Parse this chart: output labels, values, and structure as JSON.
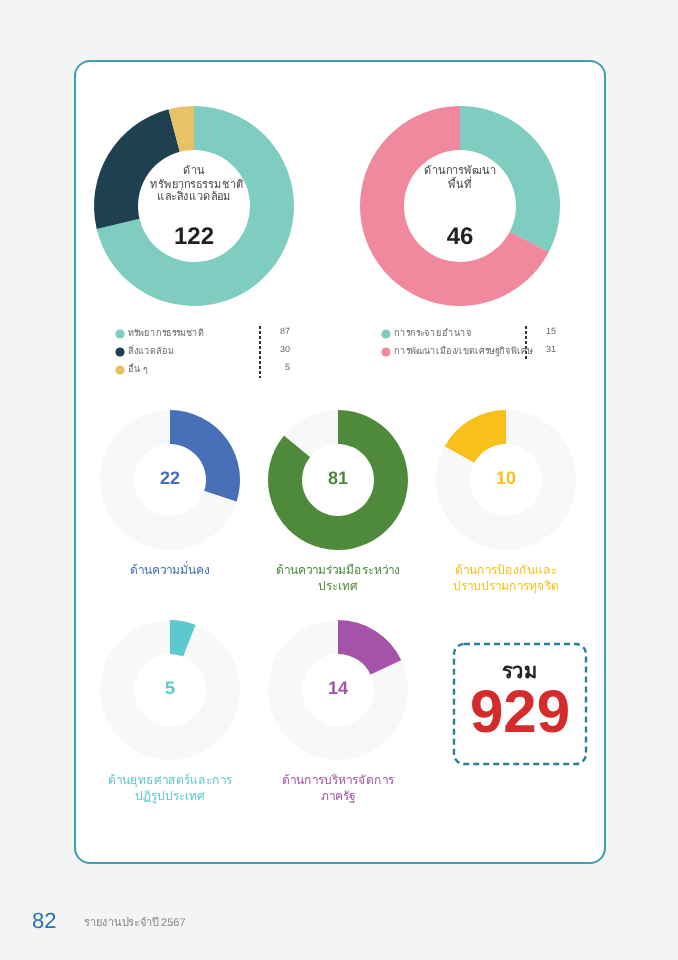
{
  "chart_data": [
    {
      "type": "donut",
      "title": "ด้านทรัพยากรธรรมชาติและสิ่งแวดล้อม",
      "annotations": [
        "122"
      ],
      "categories": [
        "ทรัพยากรธรรมชาติ",
        "สิ่งแวดล้อม",
        "อื่น ๆ"
      ],
      "values": [
        87,
        30,
        5
      ],
      "colors": [
        "#7ecdc0",
        "#1f4050",
        "#e8c267"
      ],
      "data_labels": true,
      "legend": "bottom"
    },
    {
      "type": "donut",
      "title": "ด้านการพัฒนาพื้นที่",
      "annotations": [
        "46"
      ],
      "categories": [
        "การกระจายอำนาจ",
        "การพัฒนาเมือง/เขตเศรษฐกิจพิเศษ"
      ],
      "values": [
        15,
        31
      ],
      "colors": [
        "#7ecdc0",
        "#f0889e"
      ],
      "data_labels": true,
      "legend": "bottom"
    },
    {
      "type": "donut",
      "title": "ด้านความมั่นคง",
      "annotations": [
        "22"
      ],
      "categories": [
        null,
        null
      ],
      "values": [
        30,
        70
      ],
      "colors": [
        "#4770b8",
        "#f8f8f8"
      ]
    },
    {
      "type": "donut",
      "title": "ด้านความร่วมมือระหว่างประเทศ",
      "annotations": [
        "81"
      ],
      "categories": [
        null,
        null
      ],
      "values": [
        86,
        14
      ],
      "colors": [
        "#4f8a3c",
        "#f8f8f8"
      ]
    },
    {
      "type": "donut",
      "title": "ด้านการป้องกันและปราบปรามการทุจริต",
      "annotations": [
        "10"
      ],
      "categories": [
        null,
        null
      ],
      "values": [
        83,
        17
      ],
      "colors": [
        "#f8f8f8",
        "#f7c11a"
      ]
    },
    {
      "type": "donut",
      "title": "ด้านยุทธศาสตร์และการปฏิรูปประเทศ",
      "annotations": [
        "5"
      ],
      "categories": [
        null,
        null
      ],
      "values": [
        6,
        94
      ],
      "colors": [
        "#5cc8cf",
        "#f8f8f8"
      ]
    },
    {
      "type": "donut",
      "title": "ด้านการบริหารจัดการภาครัฐ",
      "annotations": [
        "14"
      ],
      "categories": [
        null,
        null
      ],
      "values": [
        18,
        82
      ],
      "colors": [
        "#a453a8",
        "#f8f8f8"
      ]
    },
    {
      "type": "other",
      "title": "รวม",
      "annotations": [
        "929",
        "82",
        "รายงานประจำปี 2567"
      ]
    }
  ]
}
